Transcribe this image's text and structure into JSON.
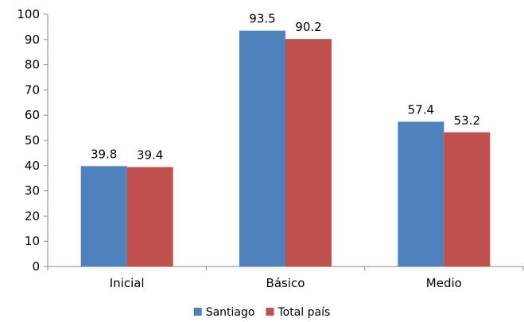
{
  "chart_data": {
    "type": "bar",
    "categories": [
      "Inicial",
      "Básico",
      "Medio"
    ],
    "series": [
      {
        "name": "Santiago",
        "color": "#4F81BD",
        "values": [
          39.8,
          93.5,
          57.4
        ],
        "labels": [
          "39.8",
          "93.5",
          "57.4"
        ]
      },
      {
        "name": "Total país",
        "color": "#C0504D",
        "values": [
          39.4,
          90.2,
          53.2
        ],
        "labels": [
          "39.4",
          "90.2",
          "53.2"
        ]
      }
    ],
    "ylim": [
      0,
      100
    ],
    "yticks": [
      "0",
      "10",
      "20",
      "30",
      "40",
      "50",
      "60",
      "70",
      "80",
      "90",
      "100"
    ],
    "grid": false,
    "legend_position": "bottom"
  }
}
